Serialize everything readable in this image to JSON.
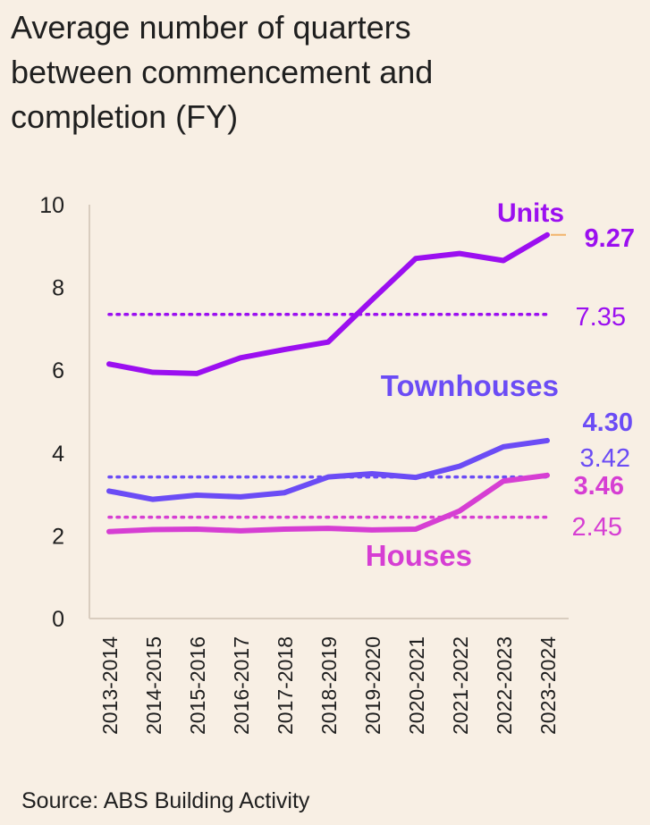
{
  "title_lines": [
    "Average number of quarters",
    "between commencement and",
    "completion (FY)"
  ],
  "source": "Source: ABS Building Activity",
  "chart_data": {
    "type": "line",
    "title": "Average number of quarters between commencement and completion (FY)",
    "xlabel": "",
    "ylabel": "",
    "ylim": [
      0,
      10
    ],
    "yticks": [
      0,
      2,
      4,
      6,
      8,
      10
    ],
    "categories": [
      "2013-2014",
      "2014-2015",
      "2015-2016",
      "2016-2017",
      "2017-2018",
      "2018-2019",
      "2019-2020",
      "2020-2021",
      "2021-2022",
      "2022-2023",
      "2023-2024"
    ],
    "series": [
      {
        "name": "Units",
        "color": "#9b0ff0",
        "values": [
          6.15,
          5.95,
          5.92,
          6.3,
          6.5,
          6.68,
          7.7,
          8.7,
          8.82,
          8.65,
          9.27
        ],
        "last_label": "9.27",
        "average": 7.35,
        "average_label": "7.35"
      },
      {
        "name": "Townhouses",
        "color": "#6b4cf5",
        "values": [
          3.08,
          2.88,
          2.98,
          2.94,
          3.04,
          3.42,
          3.5,
          3.41,
          3.68,
          4.15,
          4.3
        ],
        "last_label": "4.30",
        "average": 3.42,
        "average_label": "3.42"
      },
      {
        "name": "Houses",
        "color": "#d63ed3",
        "values": [
          2.1,
          2.15,
          2.16,
          2.12,
          2.16,
          2.18,
          2.14,
          2.16,
          2.6,
          3.32,
          3.46
        ],
        "last_label": "3.46",
        "average": 2.45,
        "average_label": "2.45"
      }
    ]
  },
  "colors": {
    "background": "#f8efe4",
    "axis": "#d9cdbf",
    "tick_text": "#1f1f1f",
    "leader": "#f2b36b"
  }
}
